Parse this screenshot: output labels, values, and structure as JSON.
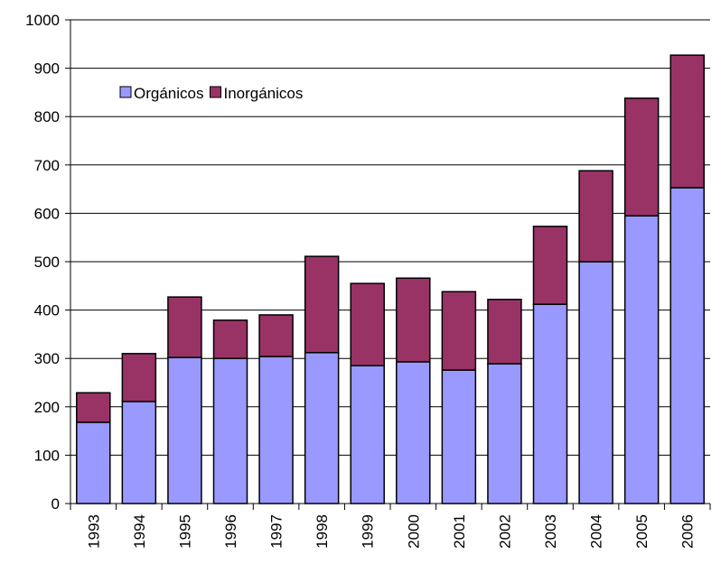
{
  "chart_data": {
    "type": "stacked-bar",
    "categories": [
      "1993",
      "1994",
      "1995",
      "1996",
      "1997",
      "1998",
      "1999",
      "2000",
      "2001",
      "2002",
      "2003",
      "2004",
      "2005",
      "2006"
    ],
    "series": [
      {
        "name": "Orgánicos",
        "color": "#9999ff",
        "values": [
          168,
          211,
          302,
          300,
          304,
          312,
          285,
          293,
          276,
          289,
          412,
          500,
          595,
          653
        ]
      },
      {
        "name": "Inorgánicos",
        "color": "#993366",
        "values": [
          61,
          99,
          125,
          79,
          86,
          199,
          170,
          173,
          162,
          133,
          161,
          188,
          243,
          274
        ]
      }
    ],
    "ylim": [
      0,
      1000
    ],
    "yticks": [
      0,
      100,
      200,
      300,
      400,
      500,
      600,
      700,
      800,
      900,
      1000
    ],
    "grid": true,
    "legend": "top-left"
  }
}
